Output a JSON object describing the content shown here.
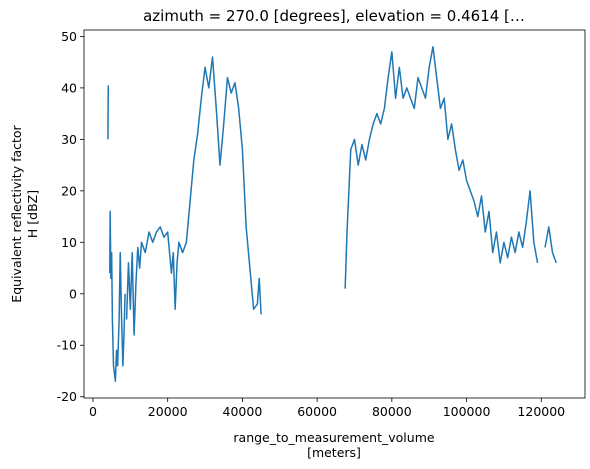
{
  "chart_data": {
    "type": "line",
    "title": "azimuth = 270.0 [degrees], elevation = 0.4614 […",
    "xlabel": [
      "range_to_measurement_volume",
      "[meters]"
    ],
    "ylabel": [
      "Equivalent reflectivity factor",
      "H [dBZ]"
    ],
    "xlim": [
      -2400,
      131700
    ],
    "ylim": [
      -20.25,
      51.25
    ],
    "xticks": [
      0,
      20000,
      40000,
      60000,
      80000,
      100000,
      120000
    ],
    "yticks": [
      -20,
      -10,
      0,
      10,
      20,
      30,
      40,
      50
    ],
    "series": [
      {
        "name": "reflectivity",
        "color": "#1f77b4",
        "x": [
          4000,
          4100,
          4300,
          4500,
          4600,
          4800,
          5000,
          5200,
          5500,
          6000,
          6300,
          6600,
          7000,
          7300,
          7600,
          8000,
          8300,
          8600,
          8700,
          8800,
          8900,
          9000,
          9500,
          10000,
          10500,
          11000,
          11500,
          12000,
          12500,
          13000,
          14000,
          15000,
          16000,
          17000,
          18000,
          19000,
          20000,
          21000,
          21500,
          22000,
          22500,
          23000,
          24000,
          25000,
          26000,
          27000,
          28000,
          29000,
          30000,
          31000,
          32000,
          33000,
          34000,
          35000,
          36000,
          37000,
          38000,
          39000,
          40000,
          41000,
          42000,
          43000,
          44000,
          44500,
          45000,
          56000,
          67500,
          68000,
          69000,
          70000,
          71000,
          72000,
          73000,
          74000,
          75000,
          76000,
          77000,
          78000,
          79000,
          80000,
          81000,
          82000,
          83000,
          84000,
          85000,
          86000,
          87000,
          88000,
          89000,
          90000,
          91000,
          92000,
          93000,
          94000,
          95000,
          96000,
          97000,
          98000,
          99000,
          100000,
          101000,
          102000,
          103000,
          104000,
          105000,
          106000,
          107000,
          108000,
          109000,
          110000,
          111000,
          112000,
          113000,
          114000,
          115000,
          116000,
          117000,
          118000,
          119000,
          120000,
          121000,
          122000,
          123000,
          124000
        ],
        "values": [
          30,
          40.5,
          null,
          4,
          16,
          3,
          8,
          -5,
          -14,
          -17,
          -11,
          -14,
          -5,
          8,
          -3,
          -14,
          -8,
          0,
          null,
          13,
          null,
          -5,
          6,
          -3,
          8,
          -8,
          2,
          9,
          5,
          10,
          8,
          12,
          10,
          12,
          13,
          11,
          12,
          4,
          8,
          -3,
          6,
          10,
          8,
          10,
          18,
          26,
          31,
          38,
          44,
          40,
          46,
          36,
          25,
          33,
          42,
          39,
          41,
          36,
          28,
          13,
          5,
          -3,
          -2,
          3,
          -4,
          null,
          1,
          12,
          28,
          30,
          25,
          29,
          26,
          30,
          33,
          35,
          33,
          36,
          42,
          47,
          38,
          44,
          38,
          40,
          38,
          36,
          42,
          40,
          38,
          44,
          48,
          42,
          36,
          38,
          30,
          33,
          28,
          24,
          26,
          22,
          20,
          18,
          15,
          19,
          12,
          16,
          8,
          12,
          6,
          10,
          7,
          11,
          8,
          12,
          9,
          14,
          20,
          10,
          6,
          null,
          9,
          13,
          8,
          6
        ]
      }
    ]
  }
}
